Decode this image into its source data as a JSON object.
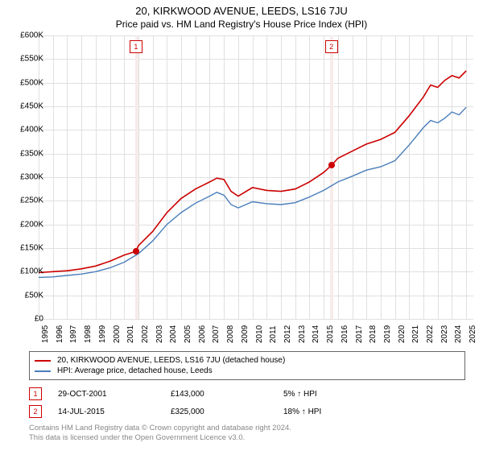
{
  "title": "20, KIRKWOOD AVENUE, LEEDS, LS16 7JU",
  "subtitle": "Price paid vs. HM Land Registry's House Price Index (HPI)",
  "chart": {
    "type": "line",
    "background_color": "#ffffff",
    "grid_color": "#e0e0e0",
    "shade_color": "#f7ebeb",
    "xlim": [
      1995,
      2025.5
    ],
    "ylim": [
      0,
      600000
    ],
    "ytick_step": 50000,
    "ytick_labels": [
      "£0",
      "£50K",
      "£100K",
      "£150K",
      "£200K",
      "£250K",
      "£300K",
      "£350K",
      "£400K",
      "£450K",
      "£500K",
      "£550K",
      "£600K"
    ],
    "xtick_years": [
      1995,
      1996,
      1997,
      1998,
      1999,
      2000,
      2001,
      2002,
      2003,
      2004,
      2005,
      2006,
      2007,
      2008,
      2009,
      2010,
      2011,
      2012,
      2013,
      2014,
      2015,
      2016,
      2017,
      2018,
      2019,
      2020,
      2021,
      2022,
      2023,
      2024,
      2025
    ],
    "series": [
      {
        "name": "price_paid",
        "label": "20, KIRKWOOD AVENUE, LEEDS, LS16 7JU (detached house)",
        "color": "#cc0000",
        "line_width": 1.6,
        "data": [
          [
            1995,
            98000
          ],
          [
            1996,
            100000
          ],
          [
            1997,
            102000
          ],
          [
            1998,
            106000
          ],
          [
            1999,
            112000
          ],
          [
            2000,
            122000
          ],
          [
            2001,
            135000
          ],
          [
            2001.83,
            143000
          ],
          [
            2002,
            155000
          ],
          [
            2003,
            185000
          ],
          [
            2004,
            225000
          ],
          [
            2005,
            255000
          ],
          [
            2006,
            275000
          ],
          [
            2007,
            290000
          ],
          [
            2007.5,
            298000
          ],
          [
            2008,
            295000
          ],
          [
            2008.5,
            270000
          ],
          [
            2009,
            260000
          ],
          [
            2010,
            278000
          ],
          [
            2011,
            272000
          ],
          [
            2012,
            270000
          ],
          [
            2013,
            275000
          ],
          [
            2014,
            290000
          ],
          [
            2015,
            310000
          ],
          [
            2015.54,
            325000
          ],
          [
            2016,
            340000
          ],
          [
            2017,
            355000
          ],
          [
            2018,
            370000
          ],
          [
            2019,
            380000
          ],
          [
            2020,
            395000
          ],
          [
            2021,
            430000
          ],
          [
            2022,
            470000
          ],
          [
            2022.5,
            495000
          ],
          [
            2023,
            490000
          ],
          [
            2023.5,
            505000
          ],
          [
            2024,
            515000
          ],
          [
            2024.5,
            510000
          ],
          [
            2025,
            525000
          ]
        ]
      },
      {
        "name": "hpi",
        "label": "HPI: Average price, detached house, Leeds",
        "color": "#4a7ebb",
        "line_width": 1.4,
        "data": [
          [
            1995,
            88000
          ],
          [
            1996,
            89000
          ],
          [
            1997,
            92000
          ],
          [
            1998,
            95000
          ],
          [
            1999,
            100000
          ],
          [
            2000,
            108000
          ],
          [
            2001,
            120000
          ],
          [
            2002,
            138000
          ],
          [
            2003,
            165000
          ],
          [
            2004,
            200000
          ],
          [
            2005,
            225000
          ],
          [
            2006,
            245000
          ],
          [
            2007,
            260000
          ],
          [
            2007.5,
            268000
          ],
          [
            2008,
            262000
          ],
          [
            2008.5,
            242000
          ],
          [
            2009,
            235000
          ],
          [
            2010,
            248000
          ],
          [
            2011,
            244000
          ],
          [
            2012,
            242000
          ],
          [
            2013,
            246000
          ],
          [
            2014,
            258000
          ],
          [
            2015,
            272000
          ],
          [
            2016,
            290000
          ],
          [
            2017,
            302000
          ],
          [
            2018,
            315000
          ],
          [
            2019,
            322000
          ],
          [
            2020,
            335000
          ],
          [
            2021,
            368000
          ],
          [
            2022,
            405000
          ],
          [
            2022.5,
            420000
          ],
          [
            2023,
            415000
          ],
          [
            2023.5,
            425000
          ],
          [
            2024,
            438000
          ],
          [
            2024.5,
            432000
          ],
          [
            2025,
            448000
          ]
        ]
      }
    ],
    "sale_markers": [
      {
        "id": "1",
        "x": 2001.83,
        "y": 143000,
        "color": "#cc0000"
      },
      {
        "id": "2",
        "x": 2015.54,
        "y": 325000,
        "color": "#cc0000"
      }
    ],
    "shade_bands": [
      {
        "from": 2001.75,
        "to": 2002.0
      },
      {
        "from": 2015.45,
        "to": 2015.7
      }
    ]
  },
  "sales": [
    {
      "marker": "1",
      "date": "29-OCT-2001",
      "price": "£143,000",
      "hpi_delta": "5%",
      "arrow": "↑",
      "suffix": "HPI",
      "marker_color": "#cc0000"
    },
    {
      "marker": "2",
      "date": "14-JUL-2015",
      "price": "£325,000",
      "hpi_delta": "18%",
      "arrow": "↑",
      "suffix": "HPI",
      "marker_color": "#cc0000"
    }
  ],
  "footer_line1": "Contains HM Land Registry data © Crown copyright and database right 2024.",
  "footer_line2": "This data is licensed under the Open Government Licence v3.0.",
  "fonts": {
    "title_size_pt": 13,
    "subtitle_size_pt": 12,
    "axis_label_size_pt": 10,
    "legend_size_pt": 10,
    "footer_size_pt": 9.5
  }
}
